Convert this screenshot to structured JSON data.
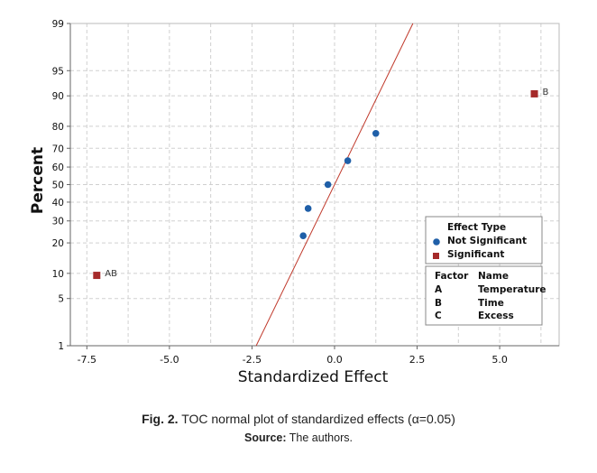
{
  "chart_data": {
    "type": "scatter",
    "subtype": "normal probability plot",
    "xlabel": "Standardized Effect",
    "ylabel": "Percent",
    "xlim": [
      -8.0,
      6.8
    ],
    "ylim": [
      1,
      99
    ],
    "y_scale": "normal probability",
    "grid": true,
    "x_ticks": [
      "-7.5",
      "-5.0",
      "-2.5",
      "0.0",
      "2.5",
      "5.0"
    ],
    "x_tick_values": [
      -7.5,
      -5.0,
      -2.5,
      0.0,
      2.5,
      5.0
    ],
    "y_ticks": [
      1,
      5,
      10,
      20,
      30,
      40,
      50,
      60,
      70,
      80,
      90,
      95,
      99
    ],
    "reference_line": {
      "color": "#c0392b",
      "slope_per_z": 1.02,
      "intercept": 0.0
    },
    "points": [
      {
        "x": -7.2,
        "y": 9.5,
        "type": "Significant",
        "label": "AB"
      },
      {
        "x": -0.95,
        "y": 23.0,
        "type": "Not Significant",
        "label": ""
      },
      {
        "x": -0.8,
        "y": 36.5,
        "type": "Not Significant",
        "label": ""
      },
      {
        "x": -0.2,
        "y": 50.0,
        "type": "Not Significant",
        "label": ""
      },
      {
        "x": 0.4,
        "y": 63.5,
        "type": "Not Significant",
        "label": ""
      },
      {
        "x": 1.25,
        "y": 77.0,
        "type": "Not Significant",
        "label": ""
      },
      {
        "x": 6.05,
        "y": 90.5,
        "type": "Significant",
        "label": "B"
      }
    ],
    "legend": {
      "title": "Effect Type",
      "placement": "bottom-right",
      "entries": [
        {
          "name": "Not Significant",
          "color": "#1f5fa8",
          "marker": "circle"
        },
        {
          "name": "Significant",
          "color": "#a52a2a",
          "marker": "square"
        }
      ]
    },
    "factor_table": {
      "headers": [
        "Factor",
        "Name"
      ],
      "rows": [
        [
          "A",
          "Temperature"
        ],
        [
          "B",
          "Time"
        ],
        [
          "C",
          "Excess"
        ]
      ]
    }
  },
  "caption": {
    "fig_label": "Fig. 2.",
    "text": " TOC normal plot of standardized effects (α=0.05)",
    "source_label": "Source:",
    "source_text": " The authors."
  }
}
